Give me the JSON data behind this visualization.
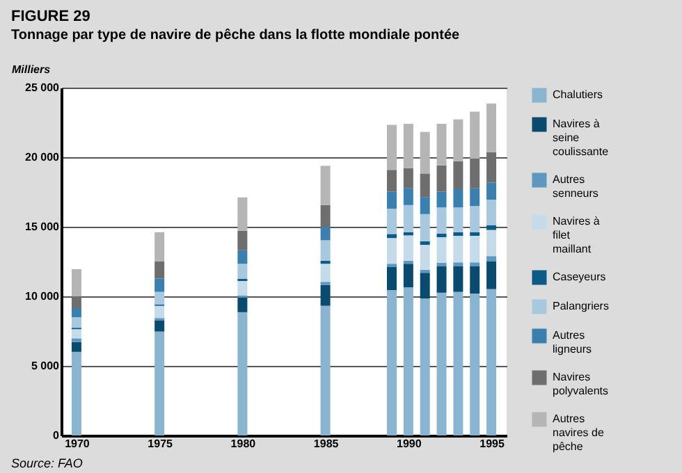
{
  "chart_data": {
    "type": "bar",
    "stacked": true,
    "title": "FIGURE 29",
    "subtitle": "Tonnage par type de navire de pêche dans la flotte mondiale pontée",
    "ylabel": "Milliers",
    "annotations": [
      "Source: FAO"
    ],
    "x": [
      1970,
      1975,
      1980,
      1985,
      1989,
      1990,
      1991,
      1992,
      1993,
      1994,
      1995
    ],
    "xlim": [
      1969.5,
      1995.5
    ],
    "xticks": [
      1970,
      1975,
      1980,
      1985,
      1990,
      1995
    ],
    "ylim": [
      0,
      25000
    ],
    "yticks": [
      {
        "value": 0,
        "label": "0"
      },
      {
        "value": 5000,
        "label": "5 000"
      },
      {
        "value": 10000,
        "label": "10 000"
      },
      {
        "value": 15000,
        "label": "15 000"
      },
      {
        "value": 20000,
        "label": "20 000"
      },
      {
        "value": 25000,
        "label": "25 000"
      }
    ],
    "grid": "y",
    "legend": "right",
    "series": [
      {
        "name": "Chalutiers",
        "color": "#8ab4d0",
        "values": [
          6010,
          7470,
          8860,
          9320,
          10450,
          10650,
          9840,
          10260,
          10320,
          10200,
          10520
        ]
      },
      {
        "name": "Navires à seine coulissante",
        "color": "#0a4a6e",
        "values": [
          710,
          810,
          1050,
          1490,
          1650,
          1690,
          1850,
          1920,
          1860,
          1980,
          1980
        ]
      },
      {
        "name": "Autres senneurs",
        "color": "#5e97bf",
        "values": [
          260,
          160,
          160,
          230,
          240,
          220,
          220,
          220,
          260,
          260,
          390
        ]
      },
      {
        "name": "Navires à filet maillant",
        "color": "#c5dbea",
        "values": [
          660,
          880,
          1030,
          1300,
          1850,
          1820,
          1790,
          1850,
          1910,
          1910,
          1880
        ]
      },
      {
        "name": "Caseyeurs",
        "color": "#0c5a85",
        "values": [
          100,
          100,
          170,
          220,
          290,
          230,
          260,
          260,
          260,
          260,
          330
        ]
      },
      {
        "name": "Palangriers",
        "color": "#a8c8df",
        "values": [
          760,
          900,
          1070,
          1470,
          1820,
          1950,
          1950,
          1880,
          1780,
          1880,
          1850
        ]
      },
      {
        "name": "Autres ligneurs",
        "color": "#3a7fae",
        "values": [
          650,
          950,
          970,
          970,
          1230,
          1230,
          1230,
          1140,
          1310,
          1270,
          1230
        ]
      },
      {
        "name": "Navires polyvalents",
        "color": "#6e6e6e",
        "values": [
          850,
          1230,
          1400,
          1560,
          1560,
          1430,
          1690,
          1880,
          2010,
          2140,
          2180
        ]
      },
      {
        "name": "Autres navires de pêche",
        "color": "#b5b5b5",
        "values": [
          1950,
          2110,
          2400,
          2820,
          3240,
          3180,
          2990,
          2990,
          3010,
          3380,
          3500
        ]
      }
    ]
  }
}
